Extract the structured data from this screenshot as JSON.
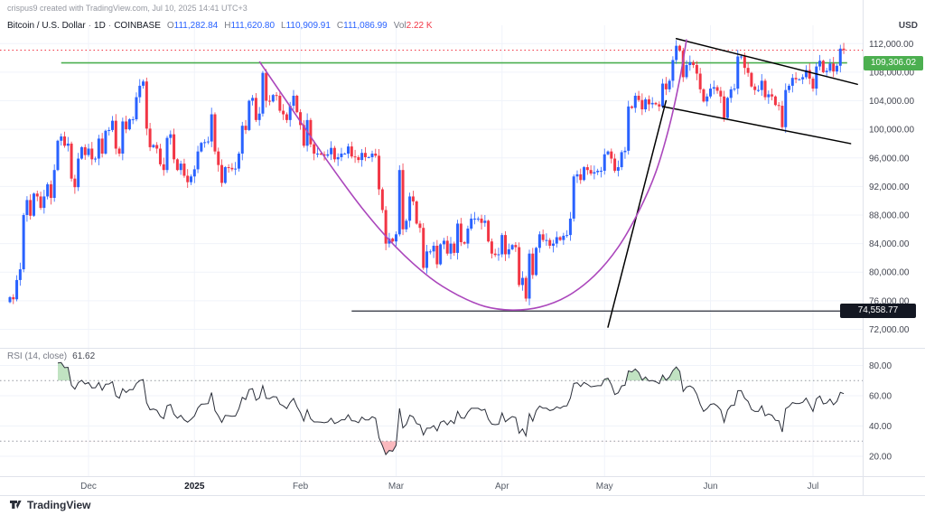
{
  "header": {
    "attribution": "crispus9 created with TradingView.com, Jul 10, 2025 14:41 UTC+3",
    "symbol": "Bitcoin / U.S. Dollar",
    "sep": "·",
    "interval": "1D",
    "exchange": "COINBASE",
    "ohlc": {
      "o_label": "O",
      "o": "111,282.84",
      "h_label": "H",
      "h": "111,620.80",
      "l_label": "L",
      "l": "110,909.91",
      "c_label": "C",
      "c": "111,086.99",
      "vol_label": "Vol",
      "vol": "2.22 K"
    },
    "currency_label": "USD"
  },
  "price_scale": {
    "ticks": [
      112000,
      108000,
      104000,
      100000,
      96000,
      92000,
      88000,
      84000,
      80000,
      76000,
      72000
    ],
    "current_badge": {
      "text": "109,306.02",
      "value": 109306.02,
      "color": "#4caf50"
    },
    "level_badge": {
      "text": "74,558.77",
      "value": 74558.77,
      "color": "#131722"
    }
  },
  "rsi_pane": {
    "label": "RSI (14, close)",
    "value_text": "61.62",
    "length": 14,
    "ticks": [
      80,
      60,
      40,
      20
    ],
    "bands": [
      70,
      30
    ]
  },
  "time_scale": {
    "ticks": [
      {
        "i": 23,
        "label": "Dec",
        "bold": false
      },
      {
        "i": 54,
        "label": "2025",
        "bold": true
      },
      {
        "i": 85,
        "label": "Feb",
        "bold": false
      },
      {
        "i": 113,
        "label": "Mar",
        "bold": false
      },
      {
        "i": 144,
        "label": "Apr",
        "bold": false
      },
      {
        "i": 174,
        "label": "May",
        "bold": false
      },
      {
        "i": 205,
        "label": "Jun",
        "bold": false
      },
      {
        "i": 235,
        "label": "Jul",
        "bold": false
      }
    ]
  },
  "footer": {
    "logo_text": "TradingView"
  },
  "chart_data": {
    "type": "candlestick",
    "title": "Bitcoin / U.S. Dollar 1D COINBASE with RSI(14)",
    "ylim": [
      71300,
      113300
    ],
    "up_color": "#2962ff",
    "down_color": "#f23645",
    "first_open": 75800,
    "closes": [
      76500,
      76200,
      78900,
      80400,
      88000,
      90100,
      87900,
      91000,
      90600,
      89000,
      90600,
      92300,
      90400,
      94300,
      98400,
      99000,
      97700,
      98000,
      93100,
      91900,
      95900,
      97500,
      96400,
      97300,
      95800,
      95900,
      98700,
      96600,
      99800,
      99900,
      101200,
      97300,
      96600,
      101100,
      100000,
      101400,
      101400,
      104500,
      106100,
      106700,
      100100,
      97500,
      97800,
      97300,
      95100,
      94300,
      98800,
      99300,
      95800,
      94300,
      95200,
      93500,
      92600,
      93400,
      94400,
      96900,
      98100,
      98200,
      98300,
      102100,
      96900,
      95000,
      92500,
      94700,
      94600,
      94400,
      94500,
      96600,
      100500,
      99900,
      104000,
      104400,
      101300,
      102200,
      107900,
      104000,
      103900,
      104800,
      104700,
      102600,
      102100,
      101300,
      103300,
      104700,
      102400,
      100600,
      97700,
      101300,
      97900,
      96600,
      96600,
      96500,
      96300,
      96500,
      97400,
      95800,
      96100,
      96600,
      96600,
      97600,
      96200,
      96100,
      95700,
      96700,
      96100,
      96100,
      96600,
      96300,
      91600,
      88700,
      84000,
      84700,
      84300,
      85300,
      94300,
      86000,
      87200,
      90600,
      89900,
      86800,
      86200,
      80600,
      82900,
      82900,
      83700,
      81100,
      83900,
      84400,
      82600,
      84000,
      82700,
      86800,
      84200,
      84000,
      86100,
      87500,
      87500,
      87500,
      86900,
      87200,
      84300,
      82600,
      82400,
      82500,
      85200,
      82500,
      83200,
      83800,
      83500,
      78200,
      79200,
      76300,
      82600,
      79600,
      83400,
      85300,
      84500,
      84500,
      83700,
      84000,
      84900,
      84500,
      85100,
      85200,
      87500,
      93400,
      93700,
      92900,
      94700,
      94300,
      93800,
      94000,
      94200,
      94200,
      96500,
      96900,
      95900,
      94200,
      94700,
      96800,
      97000,
      103200,
      103000,
      104700,
      104100,
      102800,
      104200,
      103500,
      103700,
      103500,
      103200,
      106400,
      105600,
      106800,
      109700,
      111700,
      111000,
      107300,
      109000,
      109400,
      109000,
      107800,
      105600,
      103900,
      104600,
      105700,
      105900,
      105400,
      104600,
      101600,
      104400,
      105600,
      105700,
      110200,
      110200,
      108600,
      107900,
      106000,
      105500,
      105500,
      106800,
      104500,
      104900,
      104600,
      103400,
      103300,
      100300,
      105500,
      106100,
      107200,
      107000,
      107000,
      107300,
      108300,
      107100,
      105700,
      108800,
      109600,
      108000,
      108200,
      109200,
      108100,
      108900,
      111300,
      111087
    ],
    "annotations": {
      "current_price_dotted": {
        "value": 111086.99,
        "color": "#f23645"
      },
      "hline_green": {
        "value": 109306.02,
        "color": "#4caf50",
        "from_i": 15,
        "to_i": 245
      },
      "hline_black": {
        "value": 74558.77,
        "color": "#2a2e39",
        "from_i": 100,
        "to_i": 250
      },
      "trendline_up": {
        "from": [
          175,
          72300
        ],
        "to": [
          192,
          104000
        ],
        "color": "#000000"
      },
      "wedge_upper": {
        "from": [
          195,
          112700
        ],
        "to": [
          248,
          106300
        ],
        "color": "#000000"
      },
      "wedge_lower": {
        "from": [
          191,
          103200
        ],
        "to": [
          246,
          98000
        ],
        "color": "#000000"
      },
      "cup_curve": {
        "color": "#ab47bc",
        "points": [
          [
            73,
            109500
          ],
          [
            83,
            102500
          ],
          [
            93,
            95500
          ],
          [
            103,
            89000
          ],
          [
            113,
            83500
          ],
          [
            123,
            79200
          ],
          [
            131,
            76800
          ],
          [
            139,
            75200
          ],
          [
            147,
            74700
          ],
          [
            155,
            75100
          ],
          [
            163,
            76600
          ],
          [
            171,
            79500
          ],
          [
            178,
            83500
          ],
          [
            184,
            88500
          ],
          [
            189,
            94000
          ],
          [
            193,
            100500
          ],
          [
            196,
            107000
          ],
          [
            198,
            112600
          ]
        ]
      }
    }
  }
}
